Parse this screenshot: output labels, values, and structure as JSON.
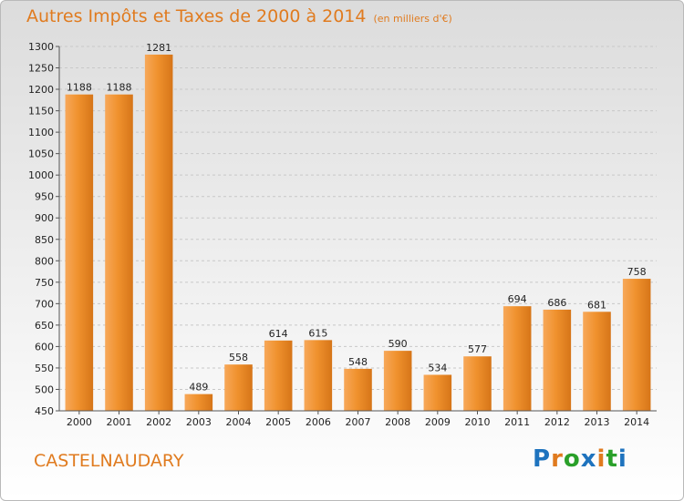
{
  "chart_data": {
    "type": "bar",
    "title": "Autres Impôts et Taxes de 2000 à 2014",
    "subtitle": "(en milliers d'€)",
    "categories": [
      "2000",
      "2001",
      "2002",
      "2003",
      "2004",
      "2005",
      "2006",
      "2007",
      "2008",
      "2009",
      "2010",
      "2011",
      "2012",
      "2013",
      "2014"
    ],
    "values": [
      1188,
      1188,
      1281,
      489,
      558,
      614,
      615,
      548,
      590,
      534,
      577,
      694,
      686,
      681,
      758
    ],
    "ylim": [
      450,
      1300
    ],
    "yticks": [
      450,
      500,
      550,
      600,
      650,
      700,
      750,
      800,
      850,
      900,
      950,
      1000,
      1050,
      1100,
      1150,
      1200,
      1250,
      1300
    ],
    "grid": true,
    "bar_color": "#f0922e",
    "bar_color_light": "#f7a85a",
    "bar_color_dark": "#d67518"
  },
  "footer": {
    "city": "CASTELNAUDARY",
    "logo_letters": [
      "P",
      "r",
      "o",
      "x",
      "i",
      "t",
      "i"
    ],
    "logo_colors": [
      "#1e73be",
      "#e07b1f",
      "#2aa02a",
      "#1e73be",
      "#e07b1f",
      "#2aa02a",
      "#1e73be"
    ]
  }
}
